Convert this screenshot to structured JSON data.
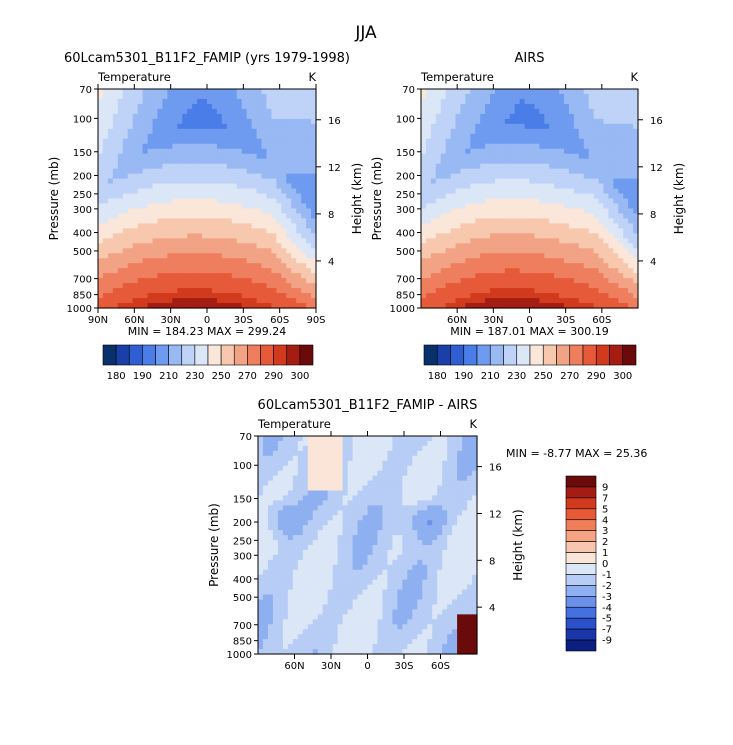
{
  "figure": {
    "title": "JJA"
  },
  "chart_data": [
    {
      "type": "heatmap",
      "title": "60Lcam5301_B11F2_FAMIP (yrs 1979-1998)",
      "subtitle_left": "Temperature",
      "subtitle_right": "K",
      "ylabel": "Pressure (mb)",
      "y2label": "Height (km)",
      "x_ticks": [
        "90N",
        "60N",
        "30N",
        "0",
        "30S",
        "60S",
        "90S"
      ],
      "y_ticks": [
        "70",
        "100",
        "150",
        "200",
        "250",
        "300",
        "400",
        "500",
        "700",
        "850",
        "1000"
      ],
      "y2_ticks": [
        "4",
        "8",
        "12",
        "16"
      ],
      "stats": "MIN = 184.23   MAX = 299.24",
      "field": "model",
      "colorbar": {
        "labels": [
          "180",
          "190",
          "210",
          "230",
          "250",
          "270",
          "290",
          "300"
        ]
      }
    },
    {
      "type": "heatmap",
      "title": "AIRS",
      "subtitle_left": "Temperature",
      "subtitle_right": "K",
      "ylabel": "Pressure (mb)",
      "y2label": "Height (km)",
      "x_ticks": [
        "60N",
        "30N",
        "0",
        "30S",
        "60S"
      ],
      "y_ticks": [
        "70",
        "100",
        "150",
        "200",
        "250",
        "300",
        "400",
        "500",
        "700",
        "850",
        "1000"
      ],
      "y2_ticks": [
        "4",
        "8",
        "12",
        "16"
      ],
      "stats": "MIN = 187.01   MAX = 300.19",
      "field": "obs",
      "colorbar": {
        "labels": [
          "180",
          "190",
          "210",
          "230",
          "250",
          "270",
          "290",
          "300"
        ]
      }
    },
    {
      "type": "heatmap",
      "title": "60Lcam5301_B11F2_FAMIP - AIRS",
      "subtitle_left": "Temperature",
      "subtitle_right": "K",
      "ylabel": "Pressure (mb)",
      "y2label": "Height (km)",
      "x_ticks": [
        "60N",
        "30N",
        "0",
        "30S",
        "60S"
      ],
      "y_ticks": [
        "70",
        "100",
        "150",
        "200",
        "250",
        "300",
        "400",
        "500",
        "700",
        "850",
        "1000"
      ],
      "y2_ticks": [
        "4",
        "8",
        "12",
        "16"
      ],
      "stats": "MIN =   -8.77   MAX =   25.36",
      "field": "diff",
      "colorbar": {
        "labels": [
          "9",
          "7",
          "5",
          "4",
          "3",
          "2",
          "1",
          "0",
          "-1",
          "-2",
          "-3",
          "-4",
          "-5",
          "-7",
          "-9"
        ]
      }
    }
  ],
  "palettes": {
    "abs": [
      "#08306b",
      "#1a3fa8",
      "#2f5ed3",
      "#4a7de8",
      "#6e9bf0",
      "#98b9f4",
      "#bfd2f7",
      "#dbe6f7",
      "#fbe7da",
      "#f8c8ae",
      "#f3a385",
      "#ee7e5e",
      "#e65a3a",
      "#d23a1e",
      "#a51d12",
      "#6b0a0a"
    ],
    "diff": [
      "#6b0a0a",
      "#a51d12",
      "#d23a1e",
      "#e85a36",
      "#f07e58",
      "#f5a382",
      "#f8c6ae",
      "#fbe5d8",
      "#dbe6f7",
      "#b7cdf5",
      "#8fb0f0",
      "#6a90ea",
      "#4470e0",
      "#2a50cc",
      "#1a36a8",
      "#0a1f80"
    ]
  }
}
